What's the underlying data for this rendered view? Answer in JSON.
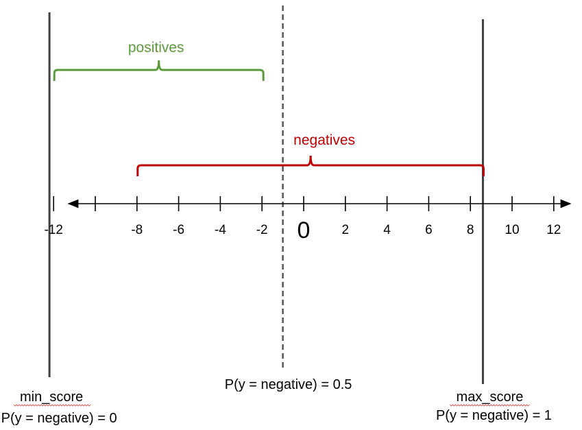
{
  "colors": {
    "positives": "#5b9a3a",
    "negatives": "#c00000",
    "axis": "#000000",
    "boundary": "#404040",
    "underline": "#e06060"
  },
  "axis": {
    "ticks": [
      -12,
      -10,
      -8,
      -6,
      -4,
      -2,
      0,
      2,
      4,
      6,
      8,
      10,
      12
    ],
    "labels": [
      {
        "value": -12,
        "text": "-12"
      },
      {
        "value": -8,
        "text": "-8"
      },
      {
        "value": -6,
        "text": "-6"
      },
      {
        "value": -4,
        "text": "-4"
      },
      {
        "value": -2,
        "text": "-2"
      },
      {
        "value": 0,
        "text": "0"
      },
      {
        "value": 2,
        "text": "2"
      },
      {
        "value": 4,
        "text": "4"
      },
      {
        "value": 6,
        "text": "6"
      },
      {
        "value": 8,
        "text": "8"
      },
      {
        "value": 10,
        "text": "10"
      },
      {
        "value": 12,
        "text": "12"
      }
    ]
  },
  "ranges": {
    "positives": {
      "label": "positives",
      "from": -12,
      "to": -2
    },
    "negatives": {
      "label": "negatives",
      "from": -8,
      "to": 8.6
    }
  },
  "boundaries": {
    "min_score": {
      "value": -12.2,
      "name": "min_score",
      "prob": "P(y = negative) = 0"
    },
    "threshold": {
      "value": -1,
      "prob": "P(y = negative) = 0.5"
    },
    "max_score": {
      "value": 8.6,
      "name": "max_score",
      "prob": "P(y = negative) = 1"
    }
  }
}
